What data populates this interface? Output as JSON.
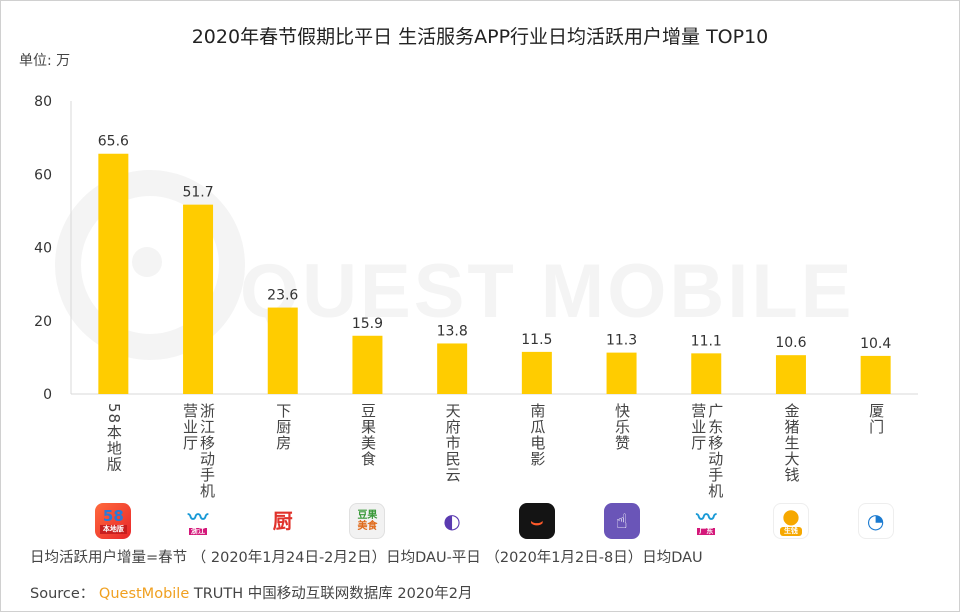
{
  "title": "2020年春节假期比平日 生活服务APP行业日均活跃用户增量 TOP10",
  "unit_label": "单位: 万",
  "watermark": "QUEST MOBILE",
  "colors": {
    "bar": "#FFCC00",
    "axis": "#d9d9d9",
    "brand": "#f0a020"
  },
  "chart_data": {
    "type": "bar",
    "title": "2020年春节假期比平日 生活服务APP行业日均活跃用户增量 TOP10",
    "ylabel": "单位: 万",
    "xlabel": "",
    "ylim": [
      0,
      80
    ],
    "yticks": [
      "0",
      "20",
      "40",
      "60",
      "80"
    ],
    "grid": false,
    "legend": "none",
    "categories": [
      "58本地版",
      "浙江移动手机营业厅",
      "下厨房",
      "豆果美食",
      "天府市民云",
      "南瓜电影",
      "快乐赞",
      "广东移动手机营业厅",
      "金猪生大钱",
      "厦门"
    ],
    "values": [
      65.6,
      51.7,
      23.6,
      15.9,
      13.8,
      11.5,
      11.3,
      11.1,
      10.6,
      10.4
    ],
    "value_labels": [
      "65.6",
      "51.7",
      "23.6",
      "15.9",
      "13.8",
      "11.5",
      "11.3",
      "11.1",
      "10.6",
      "10.4"
    ]
  },
  "category_lines": [
    [
      "58本地版"
    ],
    [
      "浙江移动手机",
      "营业厅"
    ],
    [
      "下厨房"
    ],
    [
      "豆果美食"
    ],
    [
      "天府市民云"
    ],
    [
      "南瓜电影"
    ],
    [
      "快乐赞"
    ],
    [
      "广东移动手机",
      "营业厅"
    ],
    [
      "金猪生大钱"
    ],
    [
      "厦门"
    ]
  ],
  "app_icons": [
    {
      "name": "58-local-icon",
      "text": "58",
      "sub": "本地版"
    },
    {
      "name": "china-mobile-zhejiang-icon",
      "text": "",
      "sub": "浙江"
    },
    {
      "name": "xiachufang-icon",
      "text": "厨",
      "sub": ""
    },
    {
      "name": "douguo-icon",
      "text": "豆果",
      "sub": "美食"
    },
    {
      "name": "tianfu-citizen-cloud-icon",
      "text": "",
      "sub": ""
    },
    {
      "name": "nangua-movie-icon",
      "text": "",
      "sub": ""
    },
    {
      "name": "kuailezan-icon",
      "text": "",
      "sub": ""
    },
    {
      "name": "china-mobile-guangdong-icon",
      "text": "",
      "sub": "广东"
    },
    {
      "name": "golden-pig-icon",
      "text": "",
      "sub": "生钱"
    },
    {
      "name": "xiamen-icon",
      "text": "",
      "sub": ""
    }
  ],
  "footnote": "日均活跃用户增量=春节 （ 2020年1月24日-2月2日）日均DAU-平日 （2020年1月2日-8日）日均DAU",
  "source": {
    "prefix": "Source：",
    "brand": "QuestMobile",
    "rest": "TRUTH 中国移动互联网数据库 2020年2月"
  }
}
